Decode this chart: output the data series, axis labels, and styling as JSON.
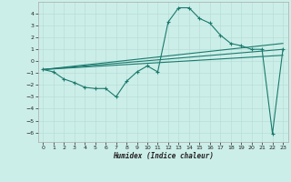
{
  "xlabel": "Humidex (Indice chaleur)",
  "background_color": "#cceee8",
  "grid_color": "#b8ddd8",
  "line_color": "#1a7a6e",
  "xlim": [
    -0.5,
    23.5
  ],
  "ylim": [
    -6.8,
    5.0
  ],
  "yticks": [
    -6,
    -5,
    -4,
    -3,
    -2,
    -1,
    0,
    1,
    2,
    3,
    4
  ],
  "xticks": [
    0,
    1,
    2,
    3,
    4,
    5,
    6,
    7,
    8,
    9,
    10,
    11,
    12,
    13,
    14,
    15,
    16,
    17,
    18,
    19,
    20,
    21,
    22,
    23
  ],
  "series1_x": [
    0,
    1,
    2,
    3,
    4,
    5,
    6,
    7,
    8,
    9,
    10,
    11,
    12,
    13,
    14,
    15,
    16,
    17,
    18,
    19,
    20,
    21,
    22,
    23
  ],
  "series1_y": [
    -0.7,
    -0.9,
    -1.5,
    -1.8,
    -2.2,
    -2.3,
    -2.3,
    -3.0,
    -1.7,
    -0.9,
    -0.4,
    -0.9,
    3.3,
    4.5,
    4.5,
    3.6,
    3.2,
    2.2,
    1.5,
    1.3,
    1.0,
    1.0,
    -6.1,
    1.0
  ],
  "line2_x": [
    0,
    23
  ],
  "line2_y": [
    -0.7,
    1.0
  ],
  "line3_x": [
    0,
    23
  ],
  "line3_y": [
    -0.7,
    1.5
  ],
  "line4_x": [
    0,
    23
  ],
  "line4_y": [
    -0.7,
    0.5
  ]
}
